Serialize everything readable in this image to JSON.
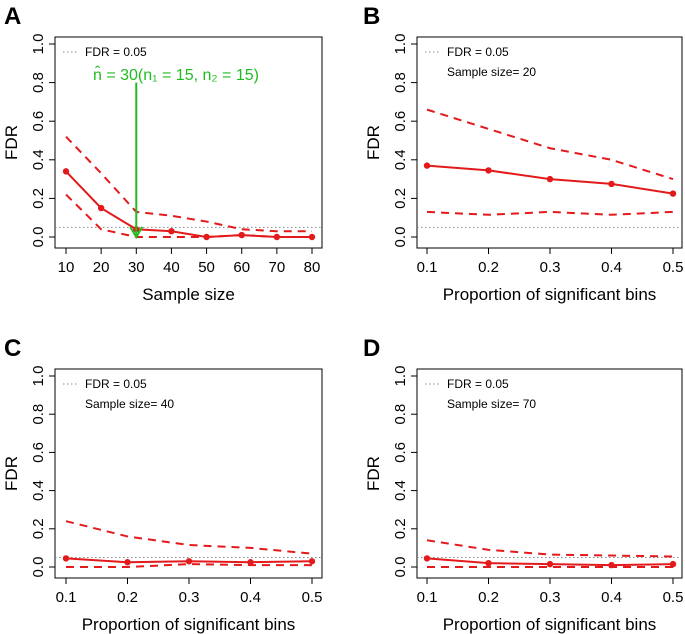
{
  "colors": {
    "series": "#e31a1c",
    "annotation": "#22bb22",
    "threshold": "#888888"
  },
  "chart_data": [
    {
      "panel": "A",
      "type": "line",
      "xlabel": "Sample size",
      "ylabel": "FDR",
      "ylim": [
        0,
        1
      ],
      "yticks": [
        "0.0",
        "0.2",
        "0.4",
        "0.6",
        "0.8",
        "1.0"
      ],
      "x": [
        10,
        20,
        30,
        40,
        50,
        60,
        70,
        80
      ],
      "xticks": [
        "10",
        "20",
        "30",
        "40",
        "50",
        "60",
        "70",
        "80"
      ],
      "xlim": [
        10,
        80
      ],
      "series": [
        {
          "name": "mean",
          "values": [
            0.34,
            0.15,
            0.04,
            0.03,
            0.0,
            0.01,
            0.0,
            0.0
          ]
        },
        {
          "name": "upper",
          "values": [
            0.52,
            0.33,
            0.13,
            0.11,
            0.08,
            0.04,
            0.03,
            0.03
          ]
        },
        {
          "name": "lower",
          "values": [
            0.22,
            0.04,
            0.0,
            0.0,
            0.0,
            0.01,
            0.0,
            0.0
          ]
        }
      ],
      "threshold": 0.05,
      "legend": [
        "FDR =  0.05"
      ],
      "annotation": {
        "text": "n̂ = 30(n₁ = 15, n₂ = 15)",
        "x": 30
      }
    },
    {
      "panel": "B",
      "type": "line",
      "xlabel": "Proportion of significant bins",
      "ylabel": "FDR",
      "ylim": [
        0,
        1
      ],
      "yticks": [
        "0.0",
        "0.2",
        "0.4",
        "0.6",
        "0.8",
        "1.0"
      ],
      "x": [
        0.1,
        0.2,
        0.3,
        0.4,
        0.5
      ],
      "xticks": [
        "0.1",
        "0.2",
        "0.3",
        "0.4",
        "0.5"
      ],
      "xlim": [
        0.1,
        0.5
      ],
      "series": [
        {
          "name": "mean",
          "values": [
            0.37,
            0.345,
            0.3,
            0.275,
            0.225
          ]
        },
        {
          "name": "upper",
          "values": [
            0.66,
            0.56,
            0.46,
            0.4,
            0.3
          ]
        },
        {
          "name": "lower",
          "values": [
            0.13,
            0.115,
            0.13,
            0.115,
            0.13
          ]
        }
      ],
      "threshold": 0.05,
      "legend": [
        "FDR =  0.05",
        "Sample size= 20"
      ]
    },
    {
      "panel": "C",
      "type": "line",
      "xlabel": "Proportion of significant bins",
      "ylabel": "FDR",
      "ylim": [
        0,
        1
      ],
      "yticks": [
        "0.0",
        "0.2",
        "0.4",
        "0.6",
        "0.8",
        "1.0"
      ],
      "x": [
        0.1,
        0.2,
        0.3,
        0.4,
        0.5
      ],
      "xticks": [
        "0.1",
        "0.2",
        "0.3",
        "0.4",
        "0.5"
      ],
      "xlim": [
        0.1,
        0.5
      ],
      "series": [
        {
          "name": "mean",
          "values": [
            0.045,
            0.025,
            0.03,
            0.025,
            0.03
          ]
        },
        {
          "name": "upper",
          "values": [
            0.24,
            0.16,
            0.115,
            0.1,
            0.07
          ]
        },
        {
          "name": "lower",
          "values": [
            0.0,
            0.0,
            0.015,
            0.01,
            0.01
          ]
        }
      ],
      "threshold": 0.05,
      "legend": [
        "FDR =  0.05",
        "Sample size= 40"
      ]
    },
    {
      "panel": "D",
      "type": "line",
      "xlabel": "Proportion of significant bins",
      "ylabel": "FDR",
      "ylim": [
        0,
        1
      ],
      "yticks": [
        "0.0",
        "0.2",
        "0.4",
        "0.6",
        "0.8",
        "1.0"
      ],
      "x": [
        0.1,
        0.2,
        0.3,
        0.4,
        0.5
      ],
      "xticks": [
        "0.1",
        "0.2",
        "0.3",
        "0.4",
        "0.5"
      ],
      "xlim": [
        0.1,
        0.5
      ],
      "series": [
        {
          "name": "mean",
          "values": [
            0.045,
            0.02,
            0.015,
            0.01,
            0.015
          ]
        },
        {
          "name": "upper",
          "values": [
            0.14,
            0.09,
            0.065,
            0.06,
            0.055
          ]
        },
        {
          "name": "lower",
          "values": [
            0.0,
            0.0,
            0.0,
            0.0,
            0.0
          ]
        }
      ],
      "threshold": 0.05,
      "legend": [
        "FDR =  0.05",
        "Sample size= 70"
      ]
    }
  ]
}
